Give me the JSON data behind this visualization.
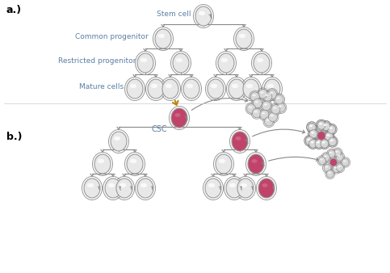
{
  "bg_color": "#ffffff",
  "label_color": "#5b7fa6",
  "label_fontsize": 6.5,
  "cell_normal_face": "#e8e8e8",
  "cell_normal_edge": "#999999",
  "cell_normal_shine": "#ffffff",
  "cell_csc_face": "#c0446a",
  "cell_csc_edge": "#999999",
  "cell_outer_edge": "#aaaaaa",
  "arrow_color": "#888888",
  "panel_a_label": "a.)",
  "panel_b_label": "b.)",
  "stem_cell_label": "Stem cell",
  "common_progenitor_label": "Common progenitor",
  "restricted_progenitor_label": "Restricted progenitor",
  "mature_cells_label": "Mature cells",
  "csc_label": "CSC",
  "gold_arrow_color": "#b8860b",
  "tumor_cell_face": "#d8d8d8",
  "tumor_cell_edge": "#888888"
}
